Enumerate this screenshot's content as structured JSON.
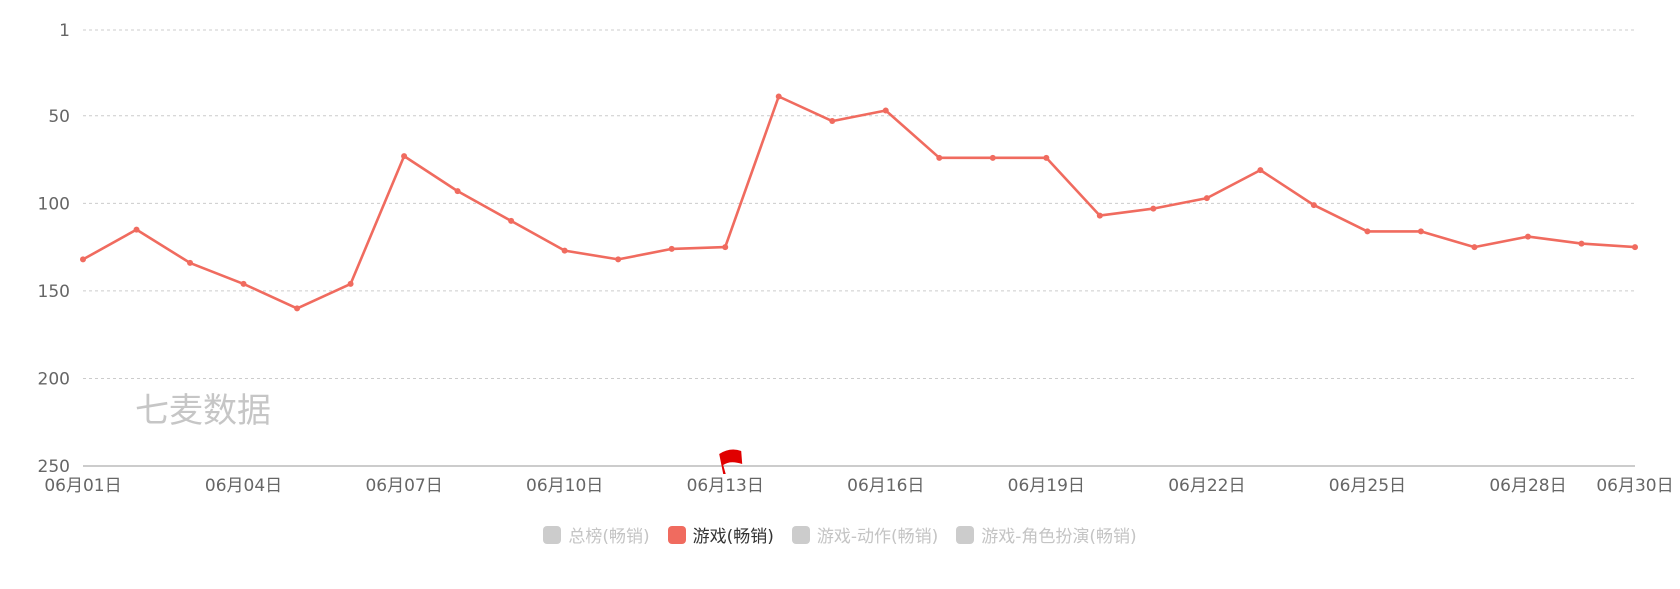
{
  "chart_data": {
    "type": "line",
    "title": "",
    "xlabel": "",
    "ylabel": "",
    "y_inverted": true,
    "ylim": [
      1,
      250
    ],
    "y_ticks": [
      1,
      50,
      100,
      150,
      200,
      250
    ],
    "x": [
      "06月01日",
      "06月02日",
      "06月03日",
      "06月04日",
      "06月05日",
      "06月06日",
      "06月07日",
      "06月08日",
      "06月09日",
      "06月10日",
      "06月11日",
      "06月12日",
      "06月13日",
      "06月14日",
      "06月15日",
      "06月16日",
      "06月17日",
      "06月18日",
      "06月19日",
      "06月20日",
      "06月21日",
      "06月22日",
      "06月23日",
      "06月24日",
      "06月25日",
      "06月26日",
      "06月27日",
      "06月28日",
      "06月29日",
      "06月30日"
    ],
    "x_tick_labels": [
      "06月01日",
      "06月04日",
      "06月07日",
      "06月10日",
      "06月13日",
      "06月16日",
      "06月19日",
      "06月22日",
      "06月25日",
      "06月28日",
      "06月30日"
    ],
    "series": [
      {
        "name": "游戏(畅销)",
        "color": "#f06b5f",
        "values": [
          132,
          115,
          134,
          146,
          160,
          146,
          73,
          93,
          110,
          127,
          132,
          126,
          125,
          39,
          53,
          47,
          74,
          74,
          74,
          107,
          103,
          97,
          81,
          101,
          116,
          116,
          125,
          119,
          123,
          125
        ]
      }
    ],
    "grid": true,
    "legend_position": "bottom-center",
    "watermark": "七麦数据",
    "marker": {
      "date": "06月13日",
      "icon": "red-flag-icon",
      "color": "#e00000"
    }
  },
  "legend": [
    {
      "label": "总榜(畅销)",
      "active": false,
      "color": "#cccccc"
    },
    {
      "label": "游戏(畅销)",
      "active": true,
      "color": "#f06b5f"
    },
    {
      "label": "游戏-动作(畅销)",
      "active": false,
      "color": "#cccccc"
    },
    {
      "label": "游戏-角色扮演(畅销)",
      "active": false,
      "color": "#cccccc"
    }
  ]
}
